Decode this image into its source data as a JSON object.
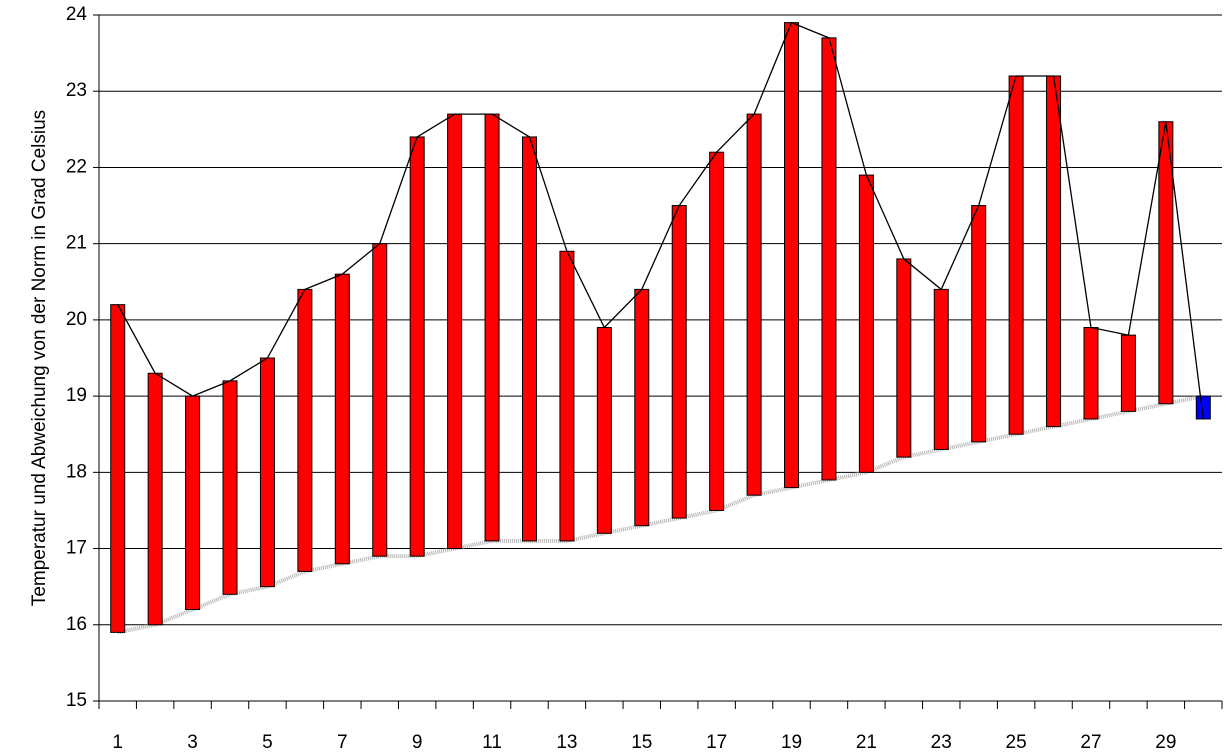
{
  "chart_data": {
    "type": "floating-bar",
    "ylabel": "Temperatur und Abweichung von der Norm in Grad Celsius",
    "categories": [
      "1",
      null,
      "3",
      null,
      "5",
      null,
      "7",
      null,
      "9",
      null,
      "11",
      null,
      "13",
      null,
      "15",
      null,
      "17",
      null,
      "19",
      null,
      "21",
      null,
      "23",
      null,
      "25",
      null,
      "27",
      null,
      "29",
      null
    ],
    "series": [
      {
        "color": "#000000",
        "values": [
          20.2,
          19.3,
          19.0,
          19.2,
          19.5,
          20.4,
          20.6,
          21.0,
          22.4,
          22.7,
          22.7,
          22.4,
          20.9,
          19.9,
          20.4,
          21.5,
          22.2,
          22.7,
          23.9,
          23.7,
          21.9,
          20.8,
          20.4,
          21.5,
          23.2,
          23.2,
          19.9,
          19.8,
          22.6,
          18.7
        ]
      },
      {
        "color": "#b4b4b4",
        "values": [
          15.9,
          16.0,
          16.2,
          16.4,
          16.5,
          16.7,
          16.8,
          16.9,
          16.9,
          17.0,
          17.1,
          17.1,
          17.1,
          17.2,
          17.3,
          17.4,
          17.5,
          17.7,
          17.8,
          17.9,
          18.0,
          18.2,
          18.3,
          18.4,
          18.5,
          18.6,
          18.7,
          18.8,
          18.9,
          19.0
        ]
      }
    ],
    "up_color": "#ff0000",
    "down_color": "#0000ff",
    "ylim": [
      15,
      24
    ],
    "yticks": [
      15,
      16,
      17,
      18,
      19,
      20,
      21,
      22,
      23,
      24
    ],
    "grid": true
  }
}
